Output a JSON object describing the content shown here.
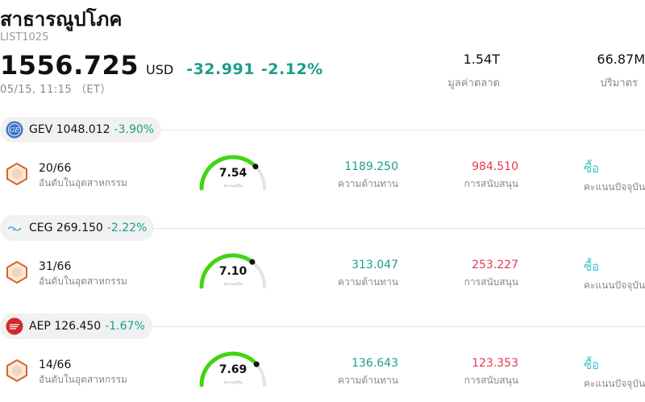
{
  "header": {
    "title": "สาธารณูปโภค",
    "code": "LIST1025",
    "price": "1556.725",
    "currency": "USD",
    "change": "-32.991",
    "change_pct": "-2.12%",
    "time": "05/15, 11:15 （ET）",
    "market_cap_value": "1.54T",
    "market_cap_label": "มูลค่าตลาด",
    "volume_value": "66.87M",
    "volume_label": "ปริมาตร"
  },
  "colors": {
    "positive_teal": "#1a9e89",
    "support_red": "#e53950",
    "buy_cyan": "#3cc4c9",
    "gauge_green": "#3fd611"
  },
  "stocks": [
    {
      "symbol_price": "GEV 1048.012",
      "change_pct": "-3.90%",
      "logo_icon": "ge-logo-icon",
      "rank": "20/66",
      "rank_label": "อันดับในอุตสาหกรรม",
      "score": "7.54",
      "score_fraction": 0.754,
      "score_sub": "คะแนนหุ้น",
      "resistance": "1189.250",
      "resistance_label": "ความต้านทาน",
      "support": "984.510",
      "support_label": "การสนับสนุน",
      "signal": "ซื้อ",
      "signal_label": "คะแนนปัจจุบัน"
    },
    {
      "symbol_price": "CEG 269.150",
      "change_pct": "-2.22%",
      "logo_icon": "constellation-logo-icon",
      "rank": "31/66",
      "rank_label": "อันดับในอุตสาหกรรม",
      "score": "7.10",
      "score_fraction": 0.71,
      "score_sub": "คะแนนหุ้น",
      "resistance": "313.047",
      "resistance_label": "ความต้านทาน",
      "support": "253.227",
      "support_label": "การสนับสนุน",
      "signal": "ซื้อ",
      "signal_label": "คะแนนปัจจุบัน"
    },
    {
      "symbol_price": "AEP 126.450",
      "change_pct": "-1.67%",
      "logo_icon": "aep-logo-icon",
      "rank": "14/66",
      "rank_label": "อันดับในอุตสาหกรรม",
      "score": "7.69",
      "score_fraction": 0.769,
      "score_sub": "คะแนนหุ้น",
      "resistance": "136.643",
      "resistance_label": "ความต้านทาน",
      "support": "123.353",
      "support_label": "การสนับสนุน",
      "signal": "ซื้อ",
      "signal_label": "คะแนนปัจจุบัน"
    }
  ]
}
